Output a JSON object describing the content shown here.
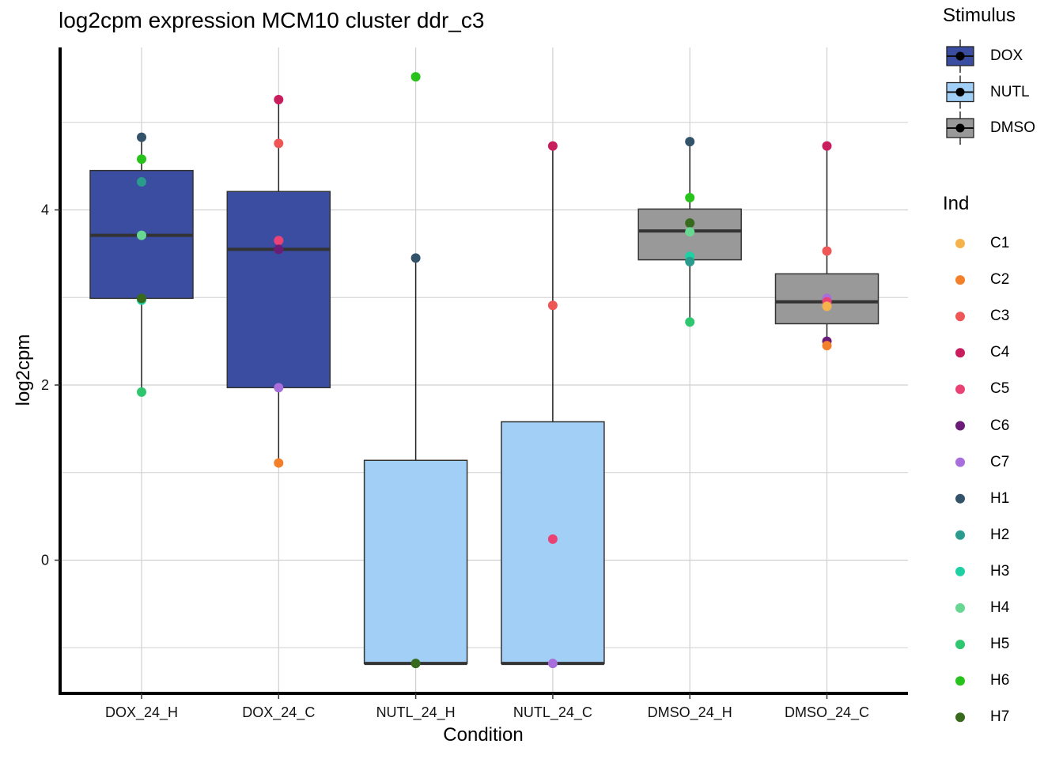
{
  "chart_data": {
    "type": "box",
    "title": "log2cpm expression MCM10 cluster ddr_c3",
    "xlabel": "Condition",
    "ylabel": "log2cpm",
    "ylim": [
      -1.5,
      5.85
    ],
    "yticks": [
      0,
      2,
      4
    ],
    "categories": [
      "DOX_24_H",
      "DOX_24_C",
      "NUTL_24_H",
      "NUTL_24_C",
      "DMSO_24_H",
      "DMSO_24_C"
    ],
    "stimulus_of_category": [
      "DOX",
      "DOX",
      "NUTL",
      "NUTL",
      "DMSO",
      "DMSO"
    ],
    "boxes": [
      {
        "category": "DOX_24_H",
        "lower_whisker": 1.92,
        "q1": 2.99,
        "median": 3.71,
        "q3": 4.45,
        "upper_whisker": 4.83
      },
      {
        "category": "DOX_24_C",
        "lower_whisker": 1.11,
        "q1": 1.97,
        "median": 3.55,
        "q3": 4.21,
        "upper_whisker": 5.26
      },
      {
        "category": "NUTL_24_H",
        "lower_whisker": -1.18,
        "q1": -1.18,
        "median": -1.18,
        "q3": 1.14,
        "upper_whisker": 3.45
      },
      {
        "category": "NUTL_24_C",
        "lower_whisker": -1.18,
        "q1": -1.18,
        "median": -1.18,
        "q3": 1.58,
        "upper_whisker": 4.73
      },
      {
        "category": "DMSO_24_H",
        "lower_whisker": 2.72,
        "q1": 3.43,
        "median": 3.76,
        "q3": 4.01,
        "upper_whisker": 4.78
      },
      {
        "category": "DMSO_24_C",
        "lower_whisker": 2.45,
        "q1": 2.7,
        "median": 2.95,
        "q3": 3.27,
        "upper_whisker": 4.73
      }
    ],
    "points": [
      {
        "category": "DOX_24_H",
        "ind": "H1",
        "value": 4.83
      },
      {
        "category": "DOX_24_H",
        "ind": "H6",
        "value": 4.58
      },
      {
        "category": "DOX_24_H",
        "ind": "H2",
        "value": 4.32
      },
      {
        "category": "DOX_24_H",
        "ind": "H4",
        "value": 3.71
      },
      {
        "category": "DOX_24_H",
        "ind": "H3",
        "value": 2.97
      },
      {
        "category": "DOX_24_H",
        "ind": "H7",
        "value": 2.99
      },
      {
        "category": "DOX_24_H",
        "ind": "H5",
        "value": 1.92
      },
      {
        "category": "DOX_24_C",
        "ind": "C4",
        "value": 5.26
      },
      {
        "category": "DOX_24_C",
        "ind": "C3",
        "value": 4.76
      },
      {
        "category": "DOX_24_C",
        "ind": "C5",
        "value": 3.65
      },
      {
        "category": "DOX_24_C",
        "ind": "C6",
        "value": 3.55
      },
      {
        "category": "DOX_24_C",
        "ind": "C7",
        "value": 1.97
      },
      {
        "category": "DOX_24_C",
        "ind": "C2",
        "value": 1.11
      },
      {
        "category": "NUTL_24_H",
        "ind": "H6",
        "value": 5.52
      },
      {
        "category": "NUTL_24_H",
        "ind": "H1",
        "value": 3.45
      },
      {
        "category": "NUTL_24_H",
        "ind": "H7",
        "value": -1.18
      },
      {
        "category": "NUTL_24_C",
        "ind": "C4",
        "value": 4.73
      },
      {
        "category": "NUTL_24_C",
        "ind": "C3",
        "value": 2.91
      },
      {
        "category": "NUTL_24_C",
        "ind": "C5",
        "value": 0.24
      },
      {
        "category": "NUTL_24_C",
        "ind": "C7",
        "value": -1.18
      },
      {
        "category": "DMSO_24_H",
        "ind": "H1",
        "value": 4.78
      },
      {
        "category": "DMSO_24_H",
        "ind": "H6",
        "value": 4.14
      },
      {
        "category": "DMSO_24_H",
        "ind": "H7",
        "value": 3.85
      },
      {
        "category": "DMSO_24_H",
        "ind": "H4",
        "value": 3.75
      },
      {
        "category": "DMSO_24_H",
        "ind": "H3",
        "value": 3.47
      },
      {
        "category": "DMSO_24_H",
        "ind": "H2",
        "value": 3.41
      },
      {
        "category": "DMSO_24_H",
        "ind": "H5",
        "value": 2.72
      },
      {
        "category": "DMSO_24_C",
        "ind": "C4",
        "value": 4.73
      },
      {
        "category": "DMSO_24_C",
        "ind": "C3",
        "value": 3.53
      },
      {
        "category": "DMSO_24_C",
        "ind": "C7",
        "value": 2.99
      },
      {
        "category": "DMSO_24_C",
        "ind": "C5",
        "value": 2.95
      },
      {
        "category": "DMSO_24_C",
        "ind": "C1",
        "value": 2.9
      },
      {
        "category": "DMSO_24_C",
        "ind": "C6",
        "value": 2.5
      },
      {
        "category": "DMSO_24_C",
        "ind": "C2",
        "value": 2.45
      }
    ],
    "legend_stimulus": {
      "title": "Stimulus",
      "entries": [
        {
          "label": "DOX",
          "color": "#3A4DA0"
        },
        {
          "label": "NUTL",
          "color": "#A2CFF6"
        },
        {
          "label": "DMSO",
          "color": "#999999"
        }
      ]
    },
    "legend_ind": {
      "title": "Ind",
      "entries": [
        {
          "label": "C1",
          "color": "#F7B34B"
        },
        {
          "label": "C2",
          "color": "#F47F2B"
        },
        {
          "label": "C3",
          "color": "#EE5756"
        },
        {
          "label": "C4",
          "color": "#C91E5E"
        },
        {
          "label": "C5",
          "color": "#EA4275"
        },
        {
          "label": "C6",
          "color": "#6A1C77"
        },
        {
          "label": "C7",
          "color": "#A86EDB"
        },
        {
          "label": "H1",
          "color": "#33536A"
        },
        {
          "label": "H2",
          "color": "#2A9B8D"
        },
        {
          "label": "H3",
          "color": "#1FD0A5"
        },
        {
          "label": "H4",
          "color": "#68D792"
        },
        {
          "label": "H5",
          "color": "#2EC66E"
        },
        {
          "label": "H6",
          "color": "#28C21C"
        },
        {
          "label": "H7",
          "color": "#386A1E"
        }
      ]
    }
  },
  "colors": {
    "grid": "#d0d0d0",
    "axis": "#000000",
    "box_border": "#333333",
    "whisker": "#222222"
  }
}
